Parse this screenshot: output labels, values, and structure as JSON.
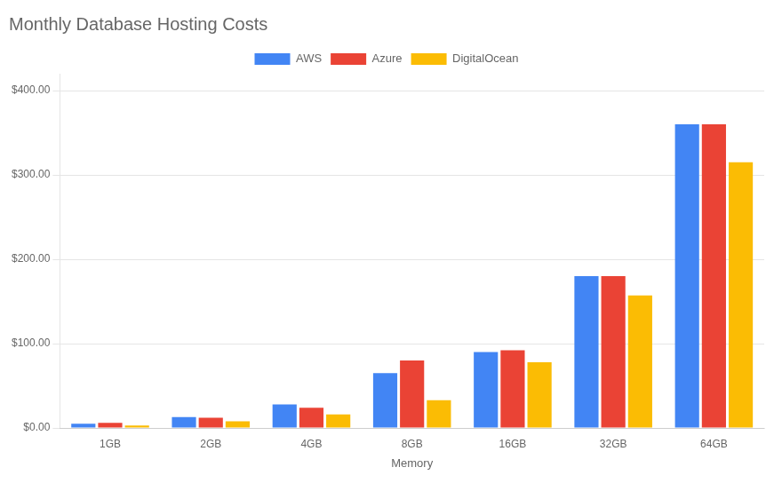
{
  "chart_data": {
    "type": "bar",
    "title": "Monthly Database Hosting Costs",
    "xlabel": "Memory",
    "categories": [
      "1GB",
      "2GB",
      "4GB",
      "8GB",
      "16GB",
      "32GB",
      "64GB"
    ],
    "series": [
      {
        "name": "AWS",
        "color": "#4285F4",
        "values": [
          5,
          13,
          28,
          65,
          90,
          180,
          360
        ]
      },
      {
        "name": "Azure",
        "color": "#EA4335",
        "values": [
          6,
          12,
          24,
          80,
          92,
          180,
          360
        ]
      },
      {
        "name": "DigitalOcean",
        "color": "#FBBC04",
        "values": [
          3,
          8,
          16,
          33,
          78,
          157,
          315
        ]
      }
    ],
    "ylim": [
      0,
      420
    ],
    "yticks": [
      {
        "value": 0,
        "label": "$0.00"
      },
      {
        "value": 100,
        "label": "$100.00"
      },
      {
        "value": 200,
        "label": "$200.00"
      },
      {
        "value": 300,
        "label": "$300.00"
      },
      {
        "value": 400,
        "label": "$400.00"
      }
    ],
    "grid": true,
    "legend": "top"
  }
}
